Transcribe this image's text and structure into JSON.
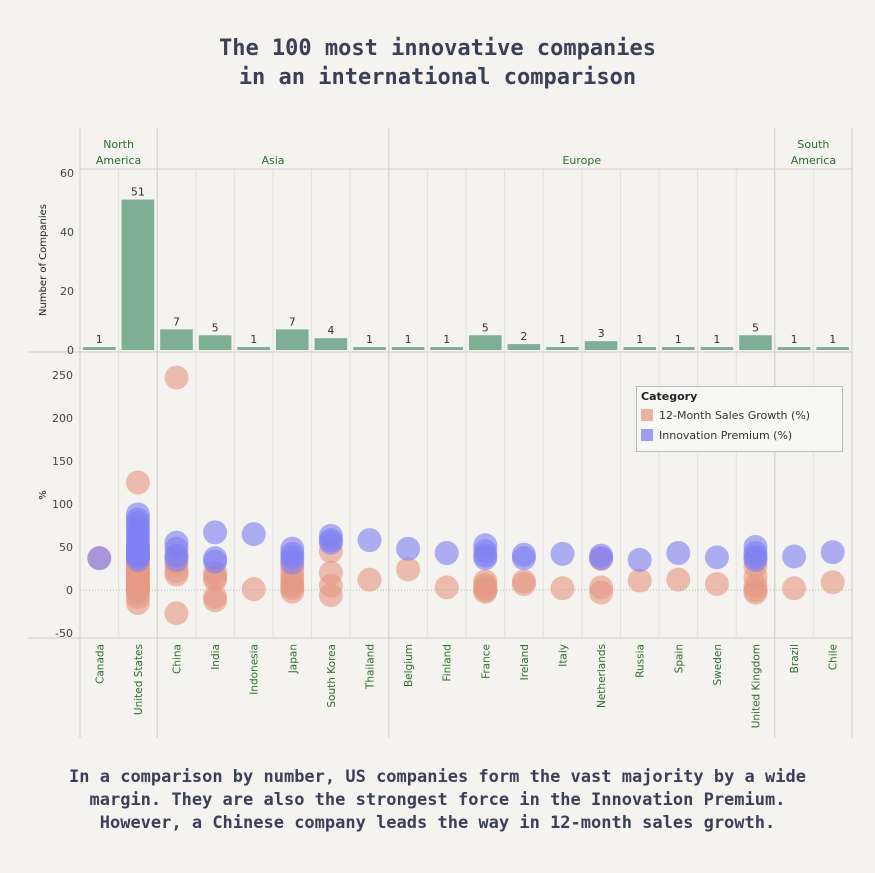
{
  "title": "The 100 most innovative companies\nin an international comparison",
  "footer": "In a comparison by number, US companies form the vast majority by a wide margin. They are also the strongest force in the Innovation Premium.\nHowever, a Chinese company leads the way in 12-month sales growth.",
  "legend": {
    "title": "Category",
    "items": [
      {
        "label": "12-Month Sales Growth (%)",
        "color": "#e59a84"
      },
      {
        "label": "Innovation Premium (%)",
        "color": "#7f7ff2"
      }
    ]
  },
  "chart_data": [
    {
      "type": "bar",
      "ylabel": "Number of Companies",
      "ylim": [
        0,
        60
      ],
      "yticks": [
        0,
        20,
        40,
        60
      ],
      "color": "#7eaf95",
      "regions": [
        {
          "name": "North America",
          "countries": [
            "Canada",
            "United States"
          ]
        },
        {
          "name": "Asia",
          "countries": [
            "China",
            "India",
            "Indonesia",
            "Japan",
            "South Korea",
            "Thailand"
          ]
        },
        {
          "name": "Europe",
          "countries": [
            "Belgium",
            "Finland",
            "France",
            "Ireland",
            "Italy",
            "Netherlands",
            "Russia",
            "Spain",
            "Sweden",
            "United Kingdom"
          ]
        },
        {
          "name": "South America",
          "countries": [
            "Brazil",
            "Chile"
          ]
        }
      ],
      "categories": [
        "Canada",
        "United States",
        "China",
        "India",
        "Indonesia",
        "Japan",
        "South Korea",
        "Thailand",
        "Belgium",
        "Finland",
        "France",
        "Ireland",
        "Italy",
        "Netherlands",
        "Russia",
        "Spain",
        "Sweden",
        "United Kingdom",
        "Brazil",
        "Chile"
      ],
      "values": [
        1,
        51,
        7,
        5,
        1,
        7,
        4,
        1,
        1,
        1,
        5,
        2,
        1,
        3,
        1,
        1,
        1,
        5,
        1,
        1
      ]
    },
    {
      "type": "scatter",
      "ylabel": "%",
      "ylim": [
        -55,
        265
      ],
      "yticks": [
        -50,
        0,
        50,
        100,
        150,
        200,
        250
      ],
      "series": [
        {
          "name": "12-Month Sales Growth (%)",
          "color": "#e59a84",
          "points": {
            "Canada": [
              37
            ],
            "United States": [
              125,
              48,
              42,
              38,
              35,
              30,
              28,
              25,
              22,
              20,
              18,
              15,
              12,
              10,
              8,
              6,
              5,
              3,
              2,
              0,
              -3,
              -8,
              -15
            ],
            "China": [
              247,
              40,
              30,
              22,
              18,
              -27
            ],
            "India": [
              20,
              15,
              12,
              -8,
              -12
            ],
            "Indonesia": [
              1
            ],
            "Japan": [
              28,
              22,
              15,
              10,
              5,
              2,
              -2
            ],
            "South Korea": [
              45,
              20,
              5,
              -6
            ],
            "Thailand": [
              12
            ],
            "Belgium": [
              24
            ],
            "Finland": [
              3
            ],
            "France": [
              10,
              6,
              2,
              0,
              -2
            ],
            "Ireland": [
              10,
              7
            ],
            "Italy": [
              2
            ],
            "Netherlands": [
              36,
              3,
              -3
            ],
            "Russia": [
              11
            ],
            "Spain": [
              12
            ],
            "Sweden": [
              7
            ],
            "United Kingdom": [
              28,
              15,
              5,
              0,
              -3
            ],
            "Brazil": [
              2
            ],
            "Chile": [
              9
            ]
          }
        },
        {
          "name": "Innovation Premium (%)",
          "color": "#7f7ff2",
          "points": {
            "Canada": [
              37
            ],
            "United States": [
              88,
              82,
              78,
              72,
              68,
              64,
              60,
              55,
              52,
              48,
              45,
              42,
              40,
              38,
              35
            ],
            "China": [
              55,
              48,
              40,
              35
            ],
            "India": [
              67,
              37,
              33
            ],
            "Indonesia": [
              65
            ],
            "Japan": [
              48,
              42,
              38,
              32
            ],
            "South Korea": [
              63,
              58,
              55
            ],
            "Thailand": [
              58
            ],
            "Belgium": [
              48
            ],
            "Finland": [
              43
            ],
            "France": [
              52,
              45,
              40,
              37
            ],
            "Ireland": [
              41,
              37
            ],
            "Italy": [
              42
            ],
            "Netherlands": [
              40,
              37
            ],
            "Russia": [
              35
            ],
            "Spain": [
              43
            ],
            "Sweden": [
              38
            ],
            "United Kingdom": [
              50,
              43,
              38,
              35
            ],
            "Brazil": [
              39
            ],
            "Chile": [
              44
            ]
          }
        }
      ]
    }
  ]
}
